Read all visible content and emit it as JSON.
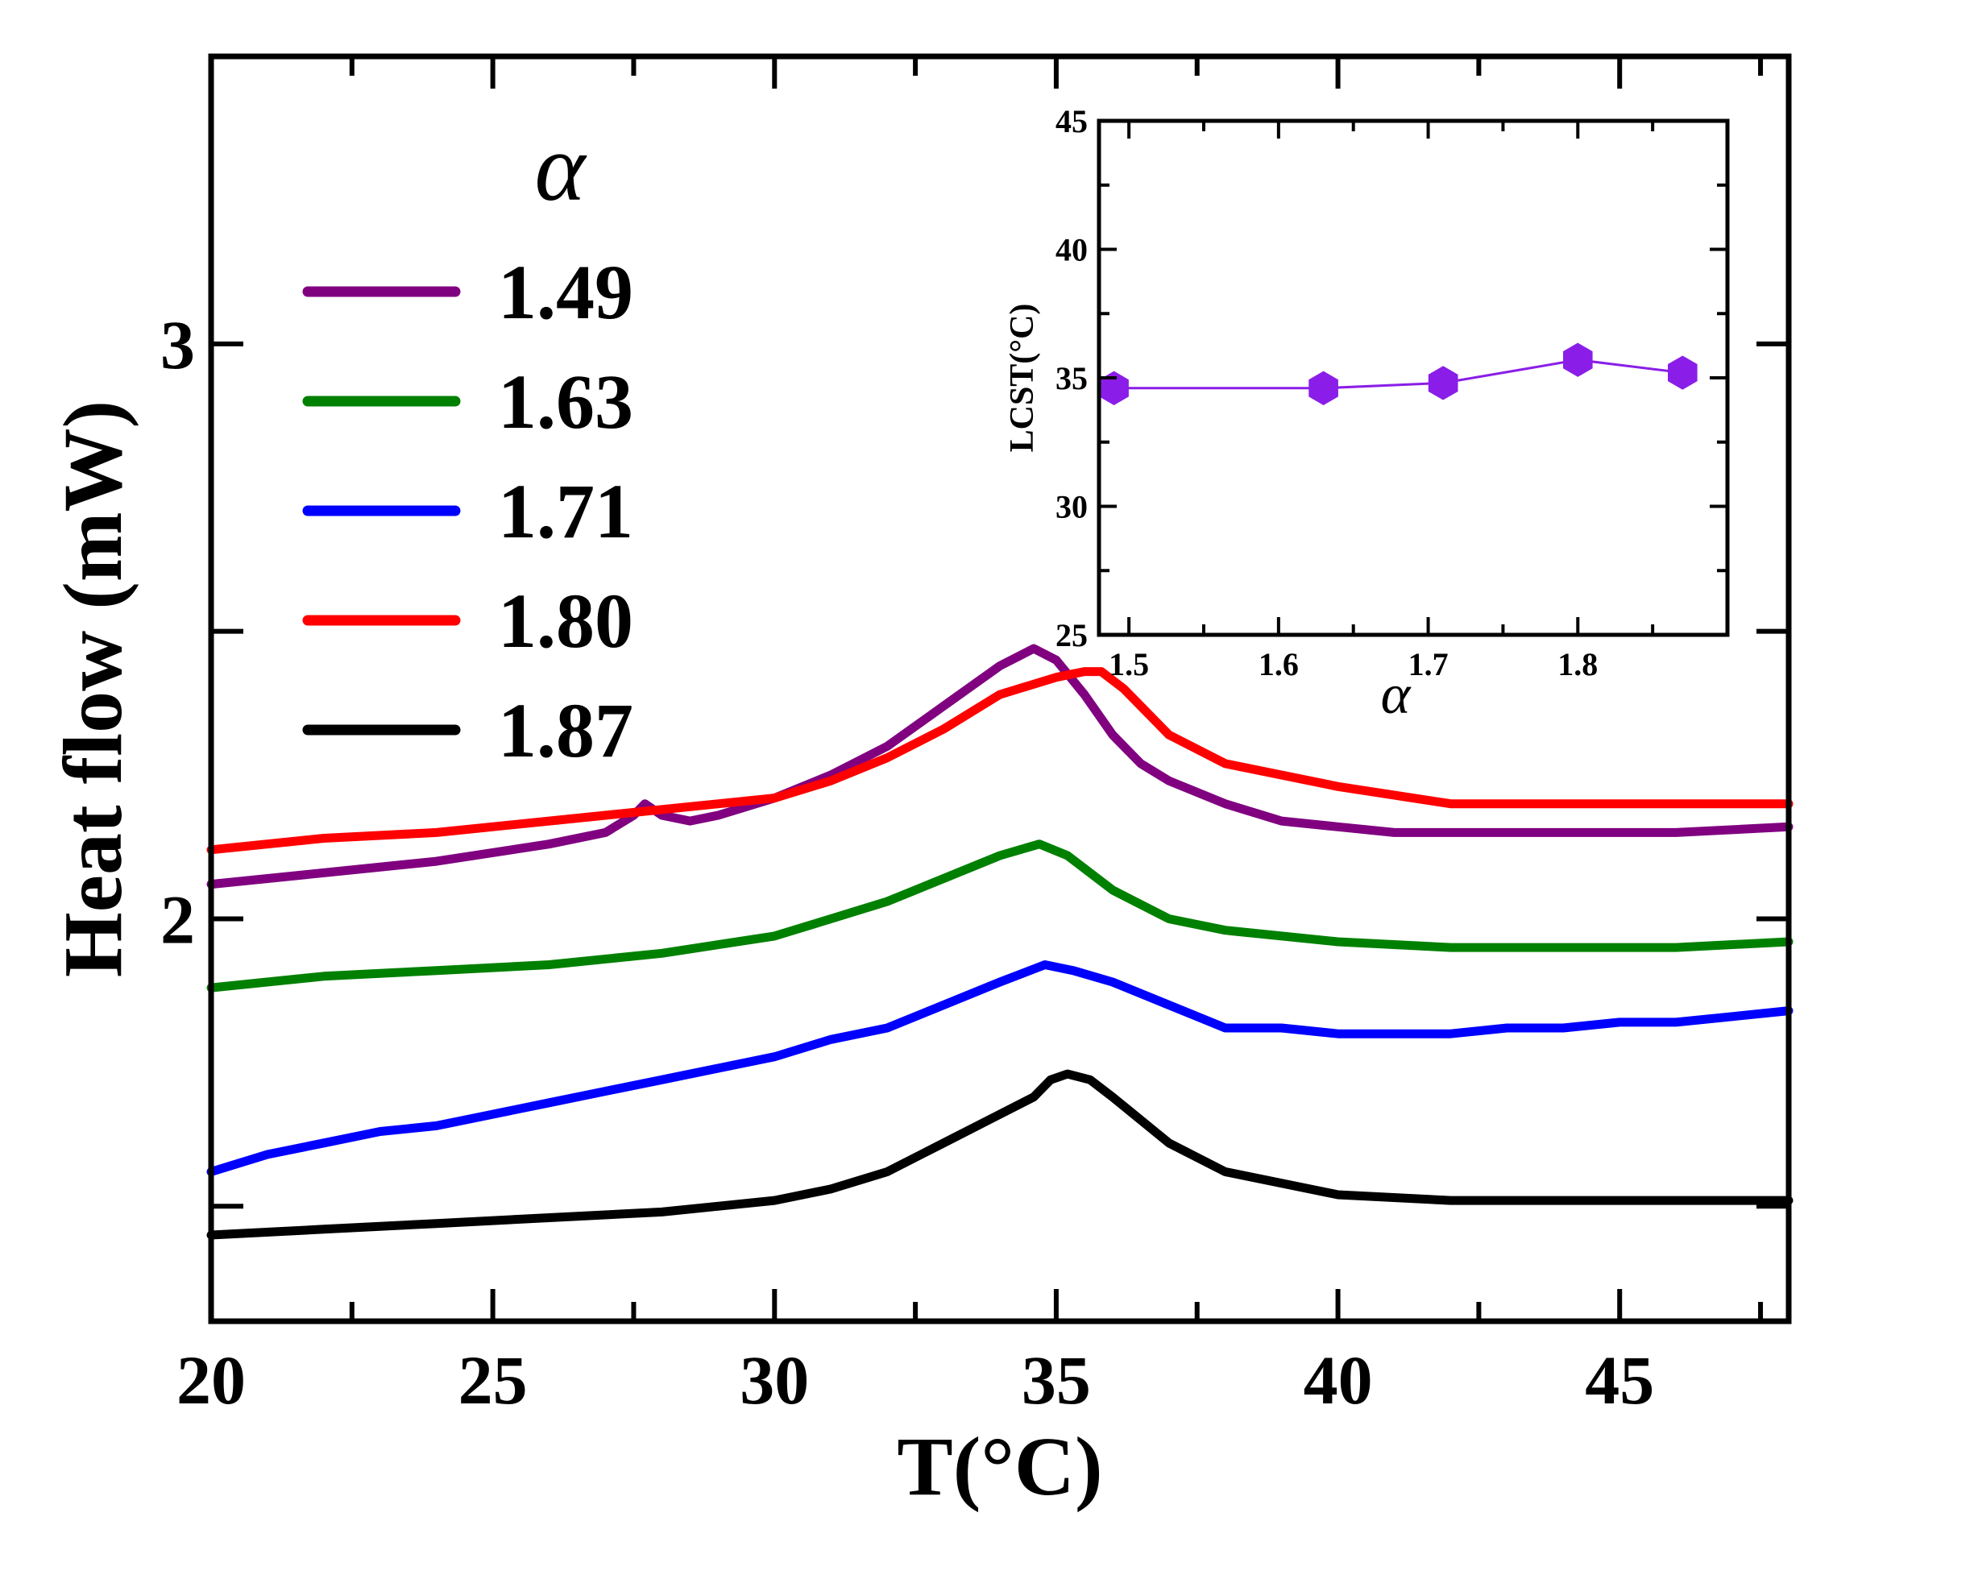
{
  "chart_data": [
    {
      "type": "line",
      "title": "",
      "xlabel": "T(°C)",
      "ylabel": "Heat flow (mW)",
      "xlim": [
        20,
        48
      ],
      "ylim": [
        1.3,
        3.5
      ],
      "xticks": [
        20,
        25,
        30,
        35,
        40,
        45
      ],
      "ytick_labels": [
        {
          "value": 3,
          "label": "3"
        },
        {
          "value": 2,
          "label": "2"
        }
      ],
      "y_minor_ticks": [
        1.5,
        2.5
      ],
      "legend": {
        "title": "α",
        "position": "top-left",
        "entries": [
          "1.49",
          "1.63",
          "1.71",
          "1.80",
          "1.87"
        ]
      },
      "series": [
        {
          "name": "1.49",
          "color": "#800080",
          "x": [
            20,
            22,
            24,
            26,
            27,
            27.5,
            27.7,
            28,
            28.5,
            29,
            30,
            31,
            32,
            33,
            34,
            34.6,
            35,
            35.5,
            36,
            36.5,
            37,
            38,
            39,
            40,
            41,
            42,
            44,
            46,
            48
          ],
          "y": [
            2.06,
            2.08,
            2.1,
            2.13,
            2.15,
            2.18,
            2.2,
            2.18,
            2.17,
            2.18,
            2.21,
            2.25,
            2.3,
            2.37,
            2.44,
            2.47,
            2.45,
            2.39,
            2.32,
            2.27,
            2.24,
            2.2,
            2.17,
            2.16,
            2.15,
            2.15,
            2.15,
            2.15,
            2.16
          ]
        },
        {
          "name": "1.63",
          "color": "#008000",
          "x": [
            20,
            22,
            24,
            26,
            28,
            30,
            31,
            32,
            33,
            34,
            34.7,
            35.2,
            36,
            37,
            38,
            40,
            42,
            44,
            46,
            48
          ],
          "y": [
            1.88,
            1.9,
            1.91,
            1.92,
            1.94,
            1.97,
            2.0,
            2.03,
            2.07,
            2.11,
            2.13,
            2.11,
            2.05,
            2.0,
            1.98,
            1.96,
            1.95,
            1.95,
            1.95,
            1.96
          ]
        },
        {
          "name": "1.71",
          "color": "#0000ff",
          "x": [
            20,
            21,
            22,
            23,
            24,
            25,
            26,
            27,
            28,
            29,
            30,
            31,
            32,
            33,
            34,
            34.8,
            35.3,
            36,
            37,
            38,
            39,
            40,
            41,
            42,
            43,
            44,
            45,
            46,
            47,
            48
          ],
          "y": [
            1.56,
            1.59,
            1.61,
            1.63,
            1.64,
            1.66,
            1.68,
            1.7,
            1.72,
            1.74,
            1.76,
            1.79,
            1.81,
            1.85,
            1.89,
            1.92,
            1.91,
            1.89,
            1.85,
            1.81,
            1.81,
            1.8,
            1.8,
            1.8,
            1.81,
            1.81,
            1.82,
            1.82,
            1.83,
            1.84
          ]
        },
        {
          "name": "1.80",
          "color": "#ff0000",
          "x": [
            20,
            22,
            24,
            26,
            28,
            30,
            31,
            32,
            33,
            34,
            35,
            35.5,
            35.8,
            36.2,
            37,
            38,
            40,
            42,
            44,
            46,
            48
          ],
          "y": [
            2.12,
            2.14,
            2.15,
            2.17,
            2.19,
            2.21,
            2.24,
            2.28,
            2.33,
            2.39,
            2.42,
            2.43,
            2.43,
            2.4,
            2.32,
            2.27,
            2.23,
            2.2,
            2.2,
            2.2,
            2.2
          ]
        },
        {
          "name": "1.87",
          "color": "#000000",
          "x": [
            20,
            22,
            24,
            26,
            28,
            30,
            31,
            32,
            33,
            34,
            34.6,
            34.9,
            35.2,
            35.6,
            36,
            37,
            38,
            40,
            42,
            44,
            46,
            48
          ],
          "y": [
            1.45,
            1.46,
            1.47,
            1.48,
            1.49,
            1.51,
            1.53,
            1.56,
            1.61,
            1.66,
            1.69,
            1.72,
            1.73,
            1.72,
            1.69,
            1.61,
            1.56,
            1.52,
            1.51,
            1.51,
            1.51,
            1.51
          ]
        }
      ]
    },
    {
      "type": "scatter",
      "title": "",
      "xlabel": "α",
      "ylabel": "LCST(°C)",
      "xlim": [
        1.48,
        1.9
      ],
      "ylim": [
        25,
        45
      ],
      "xticks": [
        1.5,
        1.6,
        1.7,
        1.8
      ],
      "xtick_labels": [
        "1.5",
        "1.6",
        "1.7",
        "1.8"
      ],
      "yticks": [
        25,
        30,
        35,
        40,
        45
      ],
      "marker": "hexagon",
      "color": "#8a1ee8",
      "x": [
        1.49,
        1.63,
        1.71,
        1.8,
        1.87
      ],
      "values": [
        34.6,
        34.6,
        34.8,
        35.7,
        35.2
      ]
    }
  ]
}
